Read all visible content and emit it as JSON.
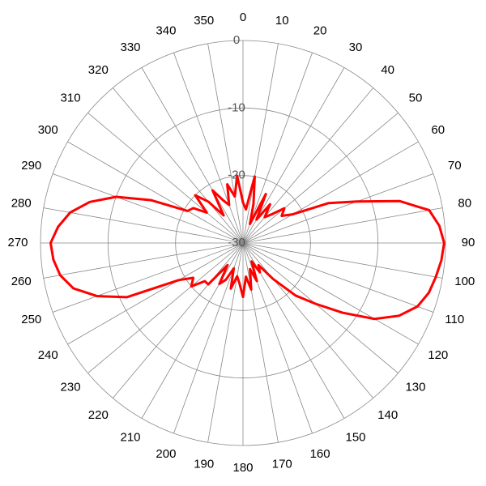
{
  "chart_data": {
    "type": "polar",
    "x": [
      0,
      5,
      10,
      15,
      20,
      25,
      30,
      35,
      40,
      45,
      50,
      55,
      60,
      65,
      70,
      75,
      80,
      85,
      90,
      95,
      100,
      105,
      110,
      115,
      120,
      125,
      130,
      135,
      140,
      145,
      150,
      155,
      160,
      165,
      170,
      175,
      180,
      185,
      190,
      195,
      200,
      205,
      210,
      215,
      220,
      225,
      230,
      235,
      240,
      245,
      250,
      255,
      260,
      265,
      270,
      275,
      280,
      285,
      290,
      295,
      300,
      305,
      310,
      315,
      320,
      325,
      330,
      335,
      340,
      345,
      350,
      355
    ],
    "values": [
      -24,
      -25,
      -20,
      -24,
      -27,
      -22,
      -26,
      -23,
      -25,
      -24,
      -22,
      -23,
      -21.5,
      -16,
      -12,
      -6,
      -2,
      -0.8,
      -0.2,
      -0.5,
      -1,
      -1.5,
      -2.5,
      -4.5,
      -7.5,
      -12,
      -16,
      -19,
      -23,
      -26,
      -25,
      -27,
      -24,
      -26,
      -23,
      -25,
      -22,
      -24,
      -25,
      -23,
      -26,
      -24,
      -23,
      -26,
      -22,
      -22,
      -20,
      -21,
      -19,
      -11,
      -7,
      -4,
      -2.5,
      -1.8,
      -1.5,
      -2.5,
      -4,
      -6.5,
      -10,
      -15,
      -20.5,
      -21,
      -23,
      -20,
      -22,
      -25,
      -21,
      -23,
      -24,
      -21,
      -23,
      -20
    ],
    "color": "#ff0000",
    "xticks": [
      0,
      10,
      20,
      30,
      40,
      50,
      60,
      70,
      80,
      90,
      100,
      110,
      120,
      130,
      140,
      150,
      160,
      170,
      180,
      190,
      200,
      210,
      220,
      230,
      240,
      250,
      260,
      270,
      280,
      290,
      300,
      310,
      320,
      330,
      340,
      350
    ],
    "rlim": [
      -30,
      0
    ],
    "rticks": [
      0,
      -10,
      -20,
      -30
    ],
    "grid": true
  }
}
